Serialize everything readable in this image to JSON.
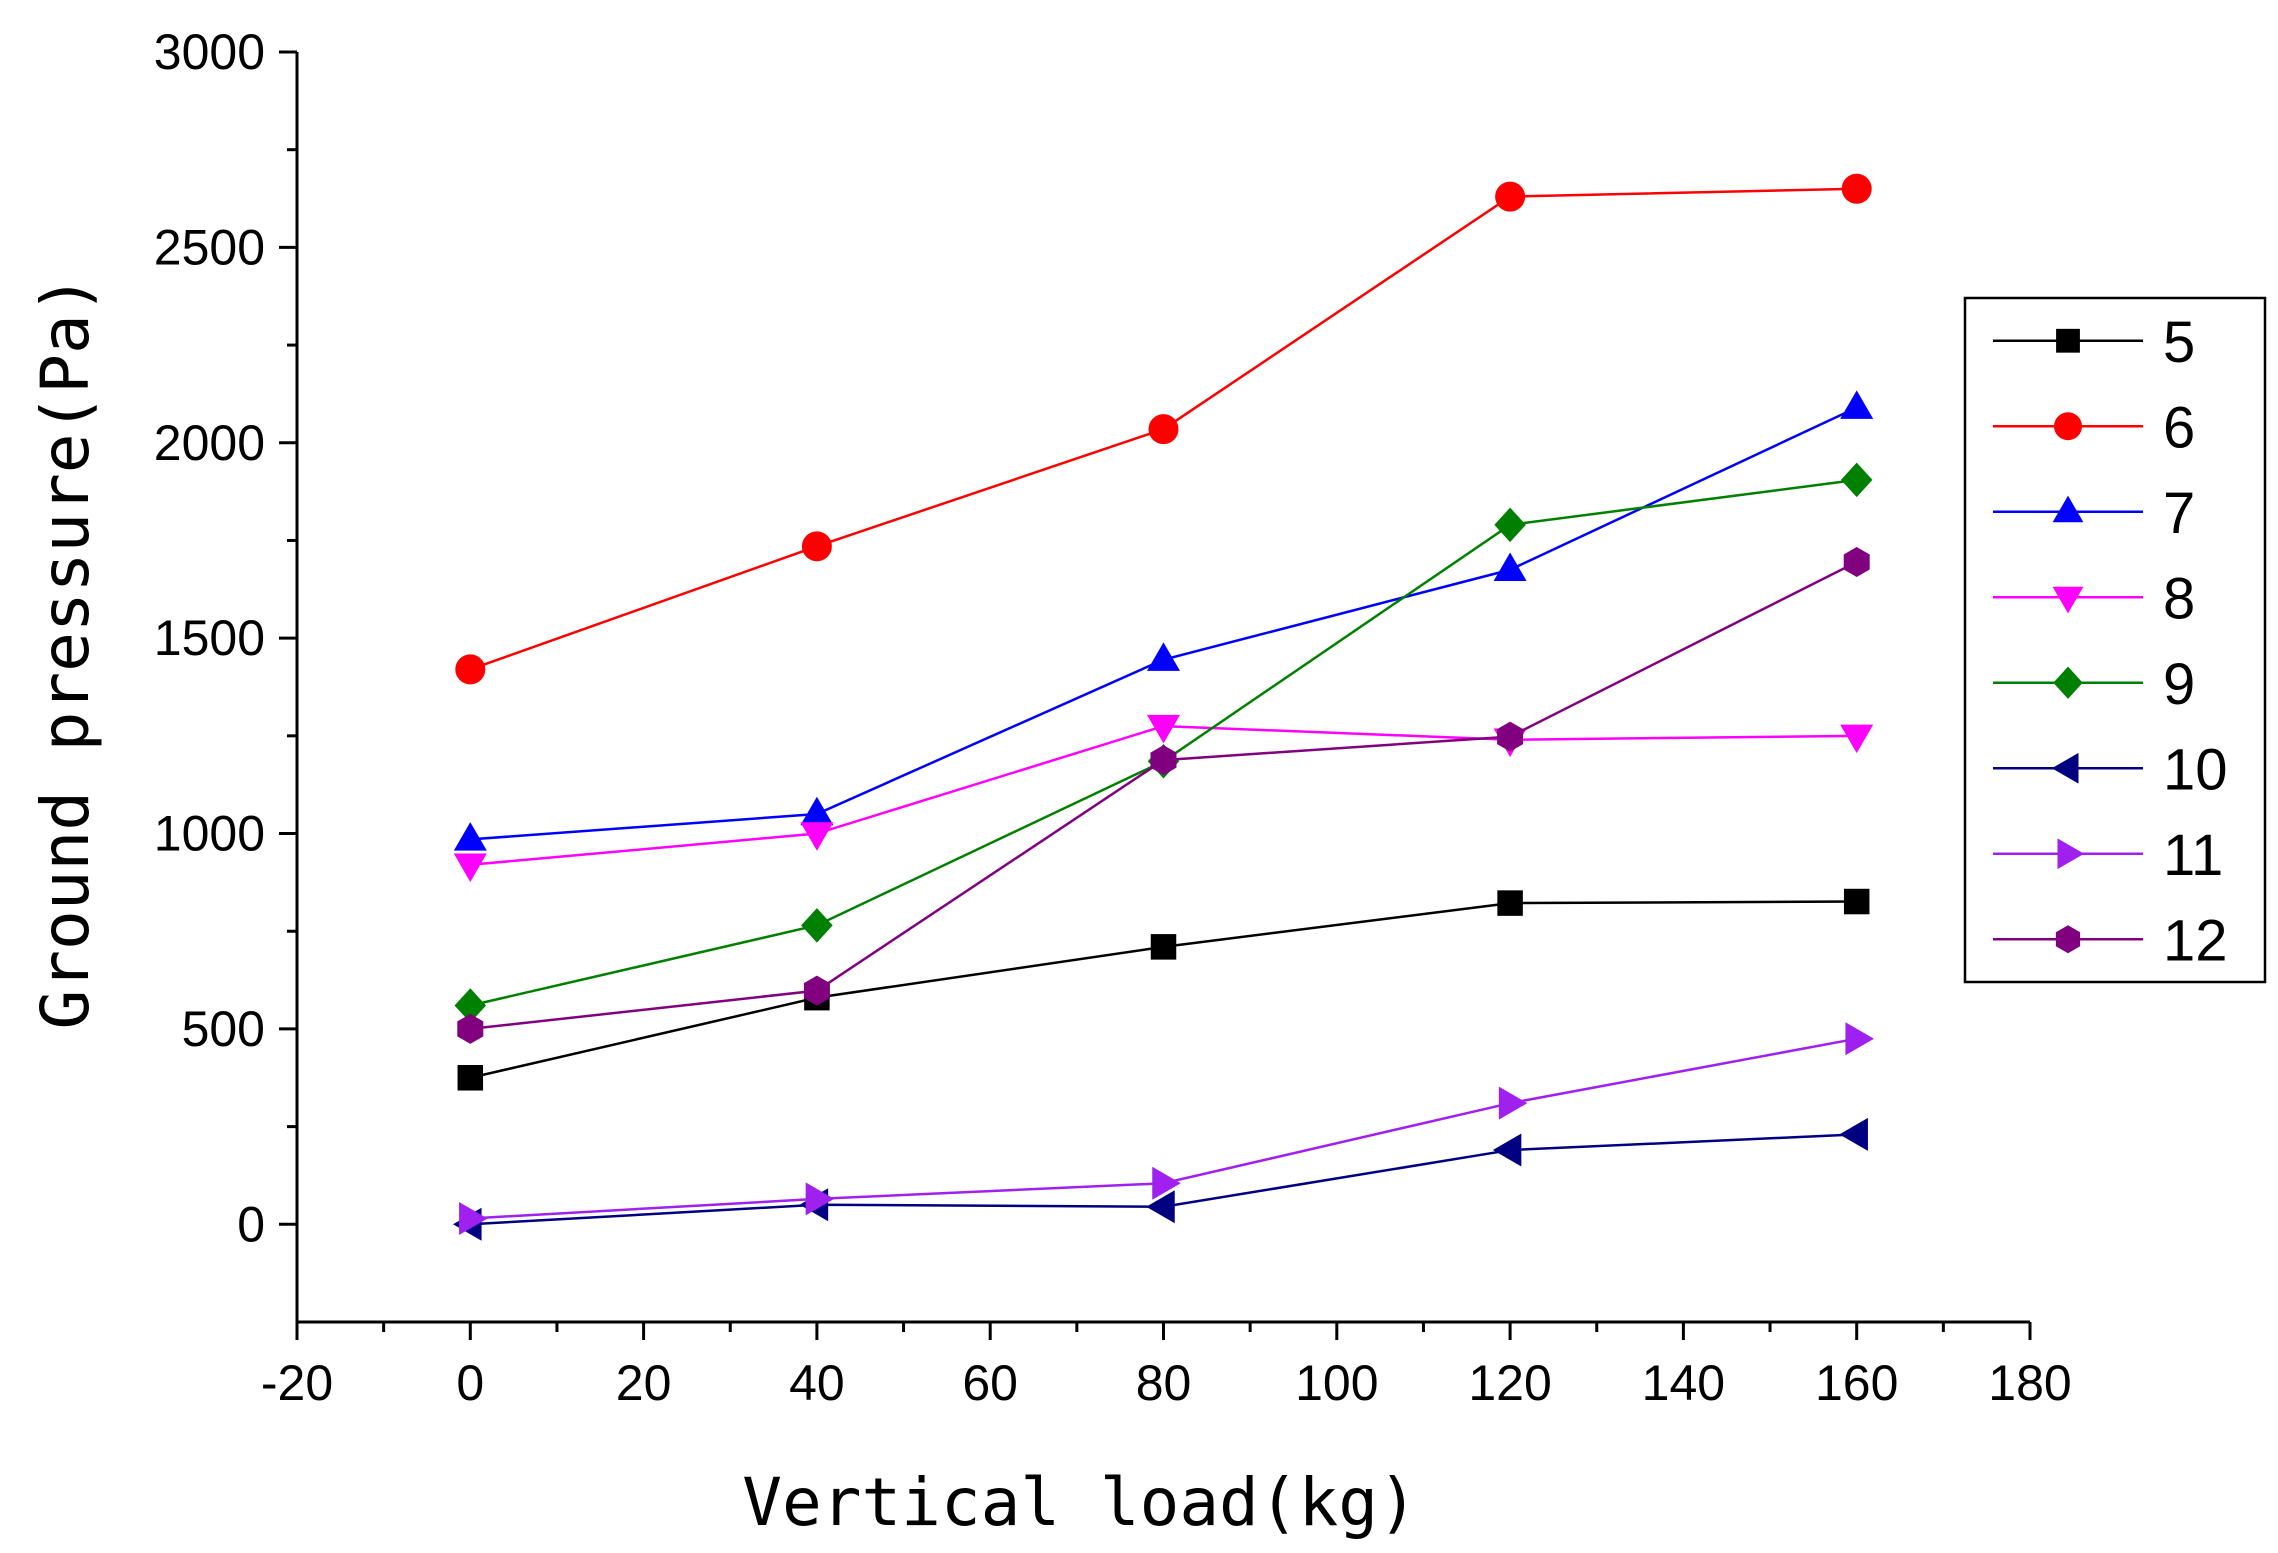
{
  "chart_data": {
    "type": "line",
    "title": "",
    "xlabel": "Vertical load(kg)",
    "ylabel": "Ground pressure(Pa)",
    "xlim": [
      -20,
      180
    ],
    "ylim": [
      -250,
      3000
    ],
    "xticks": [
      -20,
      0,
      20,
      40,
      60,
      80,
      100,
      120,
      140,
      160,
      180
    ],
    "yticks": [
      0,
      500,
      1000,
      1500,
      2000,
      2500,
      3000
    ],
    "x": [
      0,
      40,
      80,
      120,
      160
    ],
    "legend_position": "right",
    "grid": false,
    "series": [
      {
        "name": "5",
        "color": "#000000",
        "marker": "square",
        "values": [
          375,
          580,
          710,
          822,
          826
        ]
      },
      {
        "name": "6",
        "color": "#ff0000",
        "marker": "circle",
        "values": [
          1420,
          1735,
          2035,
          2630,
          2650
        ]
      },
      {
        "name": "7",
        "color": "#0000ff",
        "marker": "triangle-up",
        "values": [
          985,
          1050,
          1445,
          1675,
          2090
        ]
      },
      {
        "name": "8",
        "color": "#ff00ff",
        "marker": "triangle-down",
        "values": [
          920,
          1000,
          1275,
          1240,
          1250
        ]
      },
      {
        "name": "9",
        "color": "#008000",
        "marker": "diamond",
        "values": [
          560,
          765,
          1185,
          1790,
          1905
        ]
      },
      {
        "name": "10",
        "color": "#000080",
        "marker": "triangle-left",
        "values": [
          0,
          50,
          45,
          190,
          230
        ]
      },
      {
        "name": "11",
        "color": "#a020f0",
        "marker": "triangle-right",
        "values": [
          15,
          65,
          105,
          310,
          475
        ]
      },
      {
        "name": "12",
        "color": "#800080",
        "marker": "hexagon",
        "values": [
          500,
          598,
          1188,
          1248,
          1695
        ]
      }
    ]
  }
}
